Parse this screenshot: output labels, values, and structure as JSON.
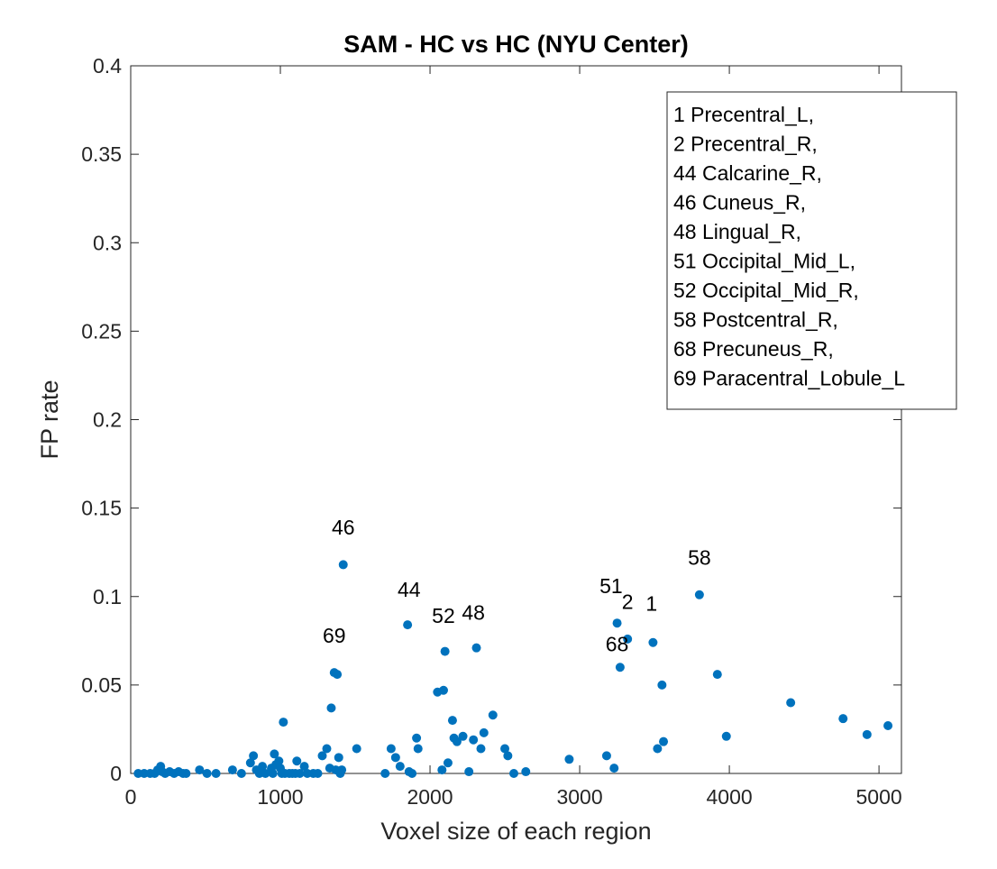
{
  "chart_data": {
    "type": "scatter",
    "title": "SAM - HC vs HC (NYU Center)",
    "xlabel": "Voxel size of each region",
    "ylabel": "FP rate",
    "xlim": [
      0,
      5150
    ],
    "ylim": [
      0,
      0.4
    ],
    "xticks": [
      0,
      1000,
      2000,
      3000,
      4000,
      5000
    ],
    "xtick_labels": [
      "0",
      "1000",
      "2000",
      "3000",
      "4000",
      "5000"
    ],
    "yticks": [
      0,
      0.05,
      0.1,
      0.15,
      0.2,
      0.25,
      0.3,
      0.35,
      0.4
    ],
    "ytick_labels": [
      "0",
      "0.05",
      "0.1",
      "0.15",
      "0.2",
      "0.25",
      "0.3",
      "0.35",
      "0.4"
    ],
    "grid": false,
    "marker_color": "#0072BD",
    "legend_position": "top-right",
    "legend_entries": [
      "1 Precentral_L,",
      "2 Precentral_R,",
      "44 Calcarine_R,",
      "46 Cuneus_R,",
      "48 Lingual_R,",
      "51 Occipital_Mid_L,",
      "52 Occipital_Mid_R,",
      "58 Postcentral_R,",
      "68 Precuneus_R,",
      "69 Paracentral_Lobule_L"
    ],
    "annotations": [
      {
        "text": "46",
        "x": 1420,
        "y": 0.135
      },
      {
        "text": "44",
        "x": 1860,
        "y": 0.1
      },
      {
        "text": "52",
        "x": 2090,
        "y": 0.085
      },
      {
        "text": "48",
        "x": 2290,
        "y": 0.087
      },
      {
        "text": "69",
        "x": 1360,
        "y": 0.074
      },
      {
        "text": "51",
        "x": 3210,
        "y": 0.102
      },
      {
        "text": "2",
        "x": 3320,
        "y": 0.093
      },
      {
        "text": "1",
        "x": 3480,
        "y": 0.092
      },
      {
        "text": "68",
        "x": 3250,
        "y": 0.069
      },
      {
        "text": "58",
        "x": 3800,
        "y": 0.118
      }
    ],
    "x": [
      50,
      90,
      130,
      160,
      180,
      200,
      210,
      230,
      260,
      290,
      320,
      350,
      370,
      460,
      510,
      570,
      680,
      740,
      800,
      820,
      840,
      860,
      880,
      900,
      940,
      950,
      960,
      970,
      990,
      1000,
      1010,
      1030,
      1060,
      1080,
      1100,
      1110,
      1130,
      1160,
      1180,
      1220,
      1250,
      1280,
      1310,
      1330,
      1340,
      1360,
      1370,
      1380,
      1390,
      1400,
      1410,
      1420,
      1510,
      1700,
      1740,
      1770,
      1800,
      1850,
      1860,
      1880,
      1910,
      1920,
      2050,
      2080,
      2090,
      2100,
      2120,
      2150,
      2160,
      2180,
      2220,
      2260,
      2290,
      2310,
      2340,
      2360,
      2420,
      2500,
      2520,
      2560,
      2640,
      2930,
      3180,
      3230,
      3250,
      3270,
      3320,
      3490,
      3520,
      3550,
      3560,
      3800,
      3920,
      3980,
      4410,
      4760,
      4920,
      5060,
      1020
    ],
    "y": [
      0,
      0,
      0,
      0,
      0.002,
      0.004,
      0.001,
      0,
      0.001,
      0,
      0.001,
      0,
      0,
      0.002,
      0,
      0,
      0.002,
      0,
      0.006,
      0.01,
      0.002,
      0,
      0.004,
      0,
      0.003,
      0,
      0.011,
      0.005,
      0.007,
      0.003,
      0,
      0,
      0,
      0,
      0,
      0.007,
      0,
      0.004,
      0,
      0,
      0,
      0.01,
      0.014,
      0.003,
      0.037,
      0.057,
      0.002,
      0.056,
      0.009,
      0,
      0.002,
      0.118,
      0.014,
      0,
      0.014,
      0.009,
      0.004,
      0.084,
      0.001,
      0,
      0.02,
      0.014,
      0.046,
      0.002,
      0.047,
      0.069,
      0.006,
      0.03,
      0.02,
      0.018,
      0.021,
      0.001,
      0.019,
      0.071,
      0.014,
      0.023,
      0.033,
      0.014,
      0.01,
      0,
      0.001,
      0.008,
      0.01,
      0.003,
      0.085,
      0.06,
      0.076,
      0.074,
      0.014,
      0.05,
      0.018,
      0.101,
      0.056,
      0.021,
      0.04,
      0.031,
      0.022,
      0.027,
      0.029
    ]
  }
}
